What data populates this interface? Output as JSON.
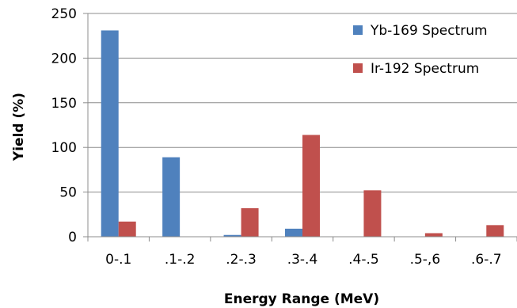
{
  "chart_data": {
    "type": "bar",
    "title": "",
    "xlabel": "Energy Range (MeV)",
    "ylabel": "Yield (%)",
    "categories": [
      "0-.1",
      ".1-.2",
      ".2-.3",
      ".3-.4",
      ".4-.5",
      ".5-,6",
      ".6-.7"
    ],
    "series": [
      {
        "name": "Yb-169 Spectrum",
        "color": "#4f81bd",
        "values": [
          231,
          89,
          2,
          9,
          0,
          0,
          0
        ]
      },
      {
        "name": "Ir-192 Spectrum",
        "color": "#c0504d",
        "values": [
          17,
          0,
          32,
          114,
          52,
          4,
          13
        ]
      }
    ],
    "ylim": [
      0,
      250
    ],
    "yticks": [
      0,
      50,
      100,
      150,
      200,
      250
    ],
    "grid": true,
    "legend": "top-right"
  }
}
